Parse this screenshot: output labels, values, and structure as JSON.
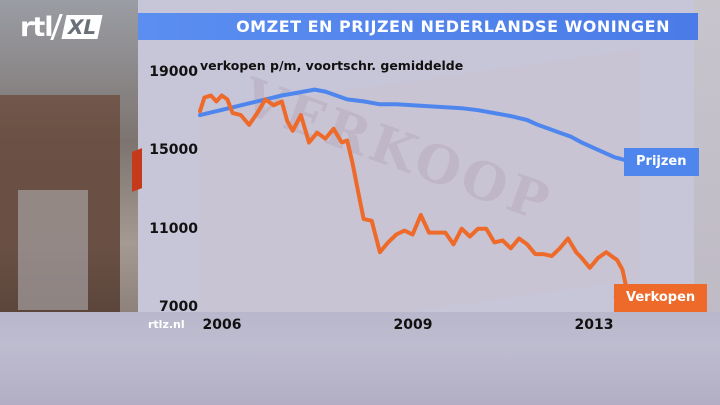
{
  "header": {
    "logo_text": "rtl",
    "logo_badge": "XL",
    "title": "OMZET EN PRIJZEN NEDERLANDSE WONINGEN"
  },
  "watermark": "rtlz.nl",
  "colors": {
    "title_bar": "#4f86ee",
    "prijzen": "#4f86ee",
    "verkopen": "#ee6a2a"
  },
  "chart_data": {
    "type": "line",
    "title": "OMZET EN PRIJZEN NEDERLANDSE WONINGEN",
    "subtitle": "verkopen p/m, voortschr. gemiddelde",
    "xlabel": "",
    "ylabel": "",
    "ylim": [
      7000,
      19000
    ],
    "xlim": [
      2006.0,
      2013.85
    ],
    "y_ticks": [
      "19000",
      "15000",
      "11000",
      "7000"
    ],
    "x_ticks": [
      "2006",
      "2009",
      "2013"
    ],
    "grid": false,
    "series": [
      {
        "name": "Prijzen",
        "color": "#4f86ee",
        "x": [
          2006.0,
          2006.3,
          2006.6,
          2006.9,
          2007.2,
          2007.5,
          2007.8,
          2008.1,
          2008.3,
          2008.5,
          2008.7,
          2009.0,
          2009.3,
          2009.6,
          2009.9,
          2010.2,
          2010.5,
          2010.8,
          2011.1,
          2011.4,
          2011.7,
          2012.0,
          2012.2,
          2012.4,
          2012.6,
          2012.8,
          2013.0,
          2013.2,
          2013.4,
          2013.6,
          2013.8
        ],
        "values": [
          16800,
          17000,
          17200,
          17400,
          17600,
          17800,
          17950,
          18100,
          18000,
          17800,
          17600,
          17500,
          17350,
          17350,
          17300,
          17250,
          17200,
          17150,
          17050,
          16900,
          16750,
          16550,
          16300,
          16100,
          15900,
          15700,
          15400,
          15150,
          14900,
          14650,
          14500
        ]
      },
      {
        "name": "Verkopen",
        "color": "#ee6a2a",
        "x": [
          2006.0,
          2006.08,
          2006.2,
          2006.3,
          2006.4,
          2006.5,
          2006.6,
          2006.75,
          2006.9,
          2007.05,
          2007.2,
          2007.35,
          2007.5,
          2007.6,
          2007.7,
          2007.85,
          2008.0,
          2008.15,
          2008.3,
          2008.45,
          2008.6,
          2008.7,
          2008.8,
          2008.9,
          2009.0,
          2009.15,
          2009.3,
          2009.45,
          2009.6,
          2009.75,
          2009.9,
          2010.05,
          2010.2,
          2010.35,
          2010.5,
          2010.65,
          2010.8,
          2010.95,
          2011.1,
          2011.25,
          2011.4,
          2011.55,
          2011.7,
          2011.85,
          2012.0,
          2012.15,
          2012.3,
          2012.45,
          2012.6,
          2012.75,
          2012.9,
          2013.0,
          2013.15,
          2013.3,
          2013.45,
          2013.55,
          2013.65,
          2013.75,
          2013.85
        ],
        "values": [
          17000,
          17700,
          17800,
          17500,
          17800,
          17600,
          16900,
          16800,
          16300,
          16900,
          17600,
          17300,
          17500,
          16500,
          16000,
          16800,
          15400,
          15900,
          15600,
          16100,
          15400,
          15500,
          14300,
          12900,
          11500,
          11400,
          9800,
          10300,
          10700,
          10900,
          10700,
          11700,
          10800,
          10800,
          10800,
          10200,
          11000,
          10600,
          11000,
          11000,
          10300,
          10400,
          10000,
          10500,
          10200,
          9700,
          9700,
          9600,
          10000,
          10500,
          9800,
          9500,
          9000,
          9500,
          9800,
          9600,
          9400,
          8900,
          7600
        ]
      }
    ],
    "legend": [
      {
        "label": "Prijzen",
        "color": "#4f86ee"
      },
      {
        "label": "Verkopen",
        "color": "#ee6a2a"
      }
    ]
  }
}
